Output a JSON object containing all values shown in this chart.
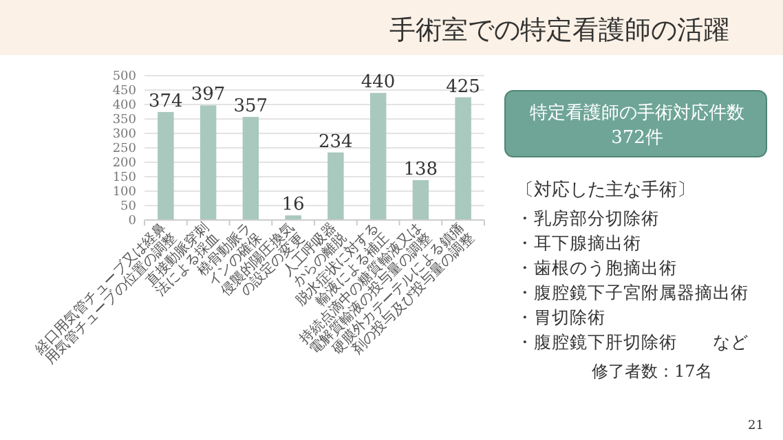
{
  "chart_data": {
    "type": "bar",
    "title": "手術室での特定看護師の活躍",
    "categories": [
      "経口用気管チューブ又は経鼻用気管チューブの位置の調整",
      "直接動脈穿刺法による採血",
      "橈骨動脈ラインの確保",
      "侵襲的陽圧換気の設定の変更",
      "人工呼吸器からの離脱",
      "脱水症状に対する輸液による補正",
      "持続点滴中の糖質輸液又は電解質輸液の投与量の調整",
      "硬膜外カテーテルによる鎮痛剤の投与及び投与量の調整"
    ],
    "values": [
      374,
      397,
      357,
      16,
      234,
      440,
      138,
      425
    ],
    "color": "#a9c8be",
    "ylim": [
      0,
      500
    ],
    "yticks": [
      0,
      50,
      100,
      150,
      200,
      250,
      300,
      350,
      400,
      450,
      500
    ],
    "grid": "y",
    "data_labels": true,
    "annotations": [
      "特定看護師の手術対応件数\n372件",
      "〔対応した主な手術〕",
      "・乳房部分切除術",
      "・耳下腺摘出術",
      "・歯根のう胞摘出術",
      "・腹腔鏡下子宮附属器摘出術",
      "・胃切除術",
      "・腹腔鏡下肝切除術　　など",
      "修了者数：17名",
      "21"
    ]
  }
}
